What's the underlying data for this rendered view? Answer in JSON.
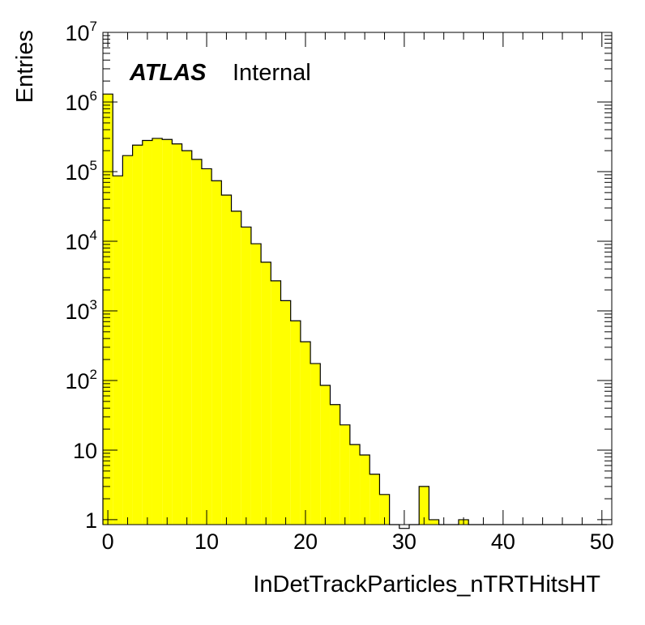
{
  "chart_data": {
    "type": "bar",
    "histogram": true,
    "bin_width": 1,
    "bin_start": -0.5,
    "x": [
      0,
      1,
      2,
      3,
      4,
      5,
      6,
      7,
      8,
      9,
      10,
      11,
      12,
      13,
      14,
      15,
      16,
      17,
      18,
      19,
      20,
      21,
      22,
      23,
      24,
      25,
      26,
      27,
      28,
      29,
      30,
      31,
      32,
      33,
      34,
      35,
      36,
      37,
      38,
      39,
      40,
      41,
      42,
      43,
      44,
      45,
      46,
      47,
      48,
      49,
      50
    ],
    "values": [
      1300000,
      87000,
      170000,
      240000,
      280000,
      300000,
      290000,
      250000,
      200000,
      150000,
      110000,
      74000,
      46000,
      27000,
      16000,
      9200,
      5000,
      2700,
      1400,
      720,
      360,
      175,
      85,
      45,
      23,
      12,
      8.5,
      4.5,
      2.3,
      0.85,
      0.75,
      0,
      3,
      1,
      0,
      0,
      1,
      0,
      0,
      0,
      0,
      0,
      0,
      0,
      0,
      0,
      0,
      0,
      0,
      0,
      0
    ],
    "xlabel": "InDetTrackParticles_nTRTHitsHT",
    "ylabel": "Entries",
    "xlim": [
      -0.5,
      51
    ],
    "ylim": [
      0.85,
      10000000
    ],
    "log_y": true,
    "fill_color": "#ffff00",
    "line_color": "#000000",
    "x_ticks": [
      "0",
      "10",
      "20",
      "30",
      "40",
      "50"
    ],
    "y_ticks": [
      {
        "base": "1",
        "exp": ""
      },
      {
        "base": "10",
        "exp": ""
      },
      {
        "base": "10",
        "exp": "2"
      },
      {
        "base": "10",
        "exp": "3"
      },
      {
        "base": "10",
        "exp": "4"
      },
      {
        "base": "10",
        "exp": "5"
      },
      {
        "base": "10",
        "exp": "6"
      },
      {
        "base": "10",
        "exp": "7"
      }
    ],
    "label_atlas": "ATLAS",
    "label_internal": "Internal"
  }
}
